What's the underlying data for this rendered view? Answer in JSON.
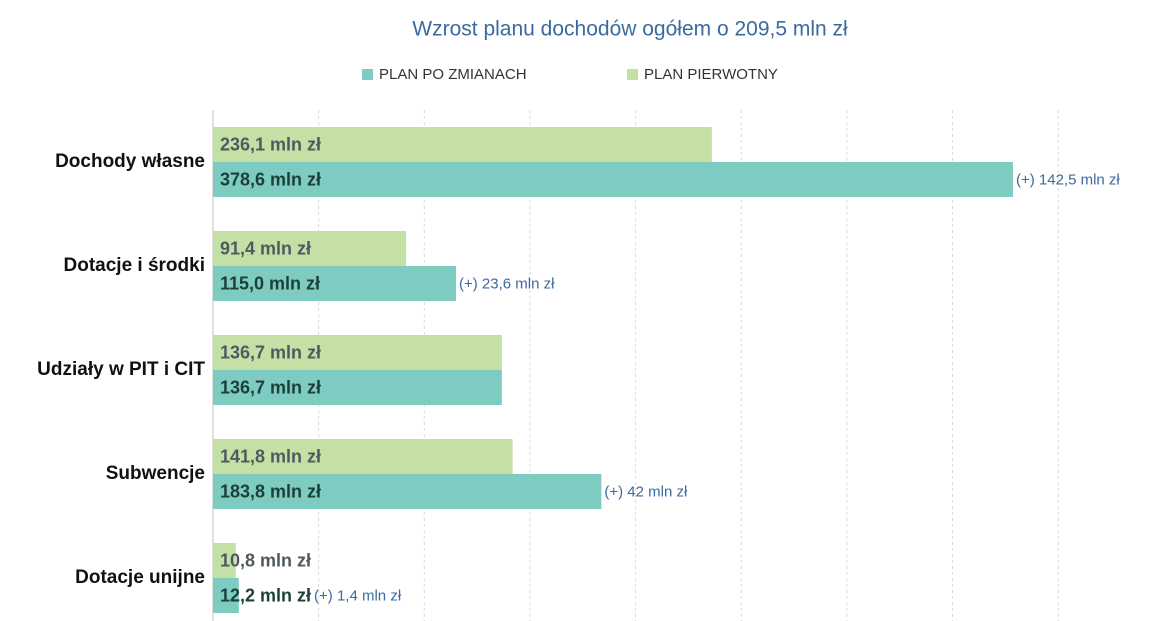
{
  "chart_data": {
    "type": "hbar",
    "title": "Wzrost planu dochodów ogółem o  209,5 mln zł",
    "categories": [
      "Dochody własne",
      "Dotacje i środki",
      "Udziały w PIT i CIT",
      "Subwencje",
      "Dotacje unijne"
    ],
    "series": [
      {
        "name": "PLAN PO ZMIANACH",
        "color": "#7ecbc1",
        "values": [
          378.6,
          115.0,
          136.7,
          183.8,
          12.2
        ],
        "value_labels": [
          "378,6 mln zł",
          "115,0 mln zł",
          "136,7 mln zł",
          "183,8 mln zł",
          "12,2 mln zł"
        ]
      },
      {
        "name": "PLAN  PIERWOTNY",
        "color": "#c5e0a5",
        "values": [
          236.1,
          91.4,
          136.7,
          141.8,
          10.8
        ],
        "value_labels": [
          "236,1 mln zł",
          "91,4 mln zł",
          "136,7 mln zł",
          "141,8 mln zł",
          "10,8 mln zł"
        ]
      }
    ],
    "differences": [
      142.5,
      23.6,
      null,
      42,
      1.4
    ],
    "difference_labels": [
      "(+) 142,5 mln zł",
      "(+) 23,6 mln zł",
      null,
      "(+) 42 mln zł",
      "(+) 1,4 mln zł"
    ],
    "xlim": [
      0,
      430
    ],
    "xticks": [
      0,
      50,
      100,
      150,
      200,
      250,
      300,
      350,
      400
    ],
    "grid": true
  }
}
